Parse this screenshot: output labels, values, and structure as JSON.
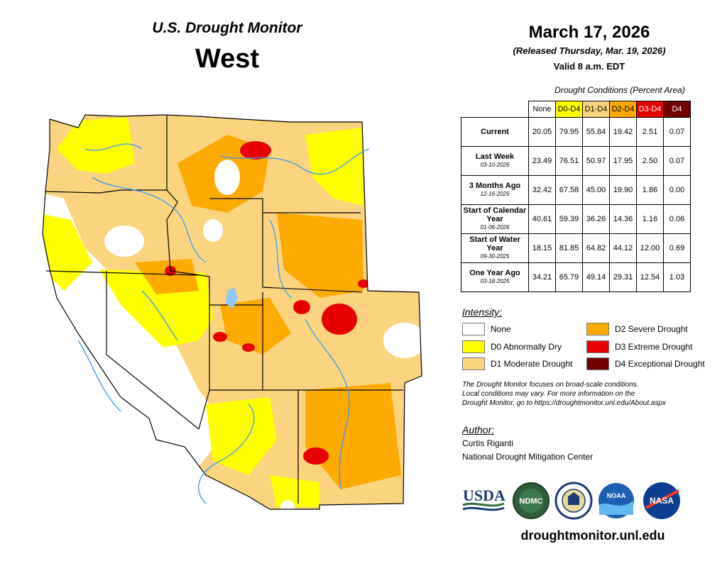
{
  "header": {
    "subtitle": "U.S. Drought Monitor",
    "region": "West",
    "date": "March 17, 2026",
    "released": "(Released Thursday, Mar. 19, 2026)",
    "valid": "Valid 8 a.m. EDT"
  },
  "table": {
    "caption": "Drought Conditions (Percent Area)",
    "columns": [
      {
        "label": "None",
        "color": "#ffffff"
      },
      {
        "label": "D0-D4",
        "color": "#ffff00"
      },
      {
        "label": "D1-D4",
        "color": "#fcd37f"
      },
      {
        "label": "D2-D4",
        "color": "#ffaa00"
      },
      {
        "label": "D3-D4",
        "color": "#e60000"
      },
      {
        "label": "D4",
        "color": "#730000"
      }
    ],
    "rows": [
      {
        "label": "Current",
        "sub": "",
        "values": [
          "20.05",
          "79.95",
          "55.84",
          "19.42",
          "2.51",
          "0.07"
        ]
      },
      {
        "label": "Last Week",
        "sub": "03-10-2026",
        "values": [
          "23.49",
          "76.51",
          "50.97",
          "17.95",
          "2.50",
          "0.07"
        ]
      },
      {
        "label": "3 Months Ago",
        "sub": "12-16-2025",
        "values": [
          "32.42",
          "67.58",
          "45.00",
          "19.90",
          "1.86",
          "0.00"
        ]
      },
      {
        "label": "Start of Calendar Year",
        "sub": "01-06-2026",
        "values": [
          "40.61",
          "59.39",
          "36.26",
          "14.36",
          "1.16",
          "0.06"
        ]
      },
      {
        "label": "Start of Water Year",
        "sub": "09-30-2025",
        "values": [
          "18.15",
          "81.85",
          "64.82",
          "44.12",
          "12.00",
          "0.69"
        ]
      },
      {
        "label": "One Year Ago",
        "sub": "03-18-2025",
        "values": [
          "34.21",
          "65.79",
          "49.14",
          "29.31",
          "12.54",
          "1.03"
        ]
      }
    ]
  },
  "legend": {
    "title": "Intensity:",
    "items": [
      {
        "label": "None",
        "color": "#ffffff"
      },
      {
        "label": "D0 Abnormally Dry",
        "color": "#ffff00"
      },
      {
        "label": "D1 Moderate Drought",
        "color": "#fcd37f"
      },
      {
        "label": "D2 Severe Drought",
        "color": "#ffaa00"
      },
      {
        "label": "D3 Extreme Drought",
        "color": "#e60000"
      },
      {
        "label": "D4 Exceptional Drought",
        "color": "#730000"
      }
    ]
  },
  "note": {
    "line1": "The Drought Monitor focuses on broad-scale conditions.",
    "line2": "Local conditions may vary. For more information on the",
    "line3": "Drought Monitor, go to https://droughtmonitor.unl.edu/About.aspx"
  },
  "author": {
    "title": "Author:",
    "name": "Curtis Riganti",
    "org": "National Drought Mitigation Center"
  },
  "logos": {
    "usda": "USDA",
    "ndmc": "NDMC",
    "noaa": "NOAA",
    "nasa": "NASA"
  },
  "website": "droughtmonitor.unl.edu"
}
